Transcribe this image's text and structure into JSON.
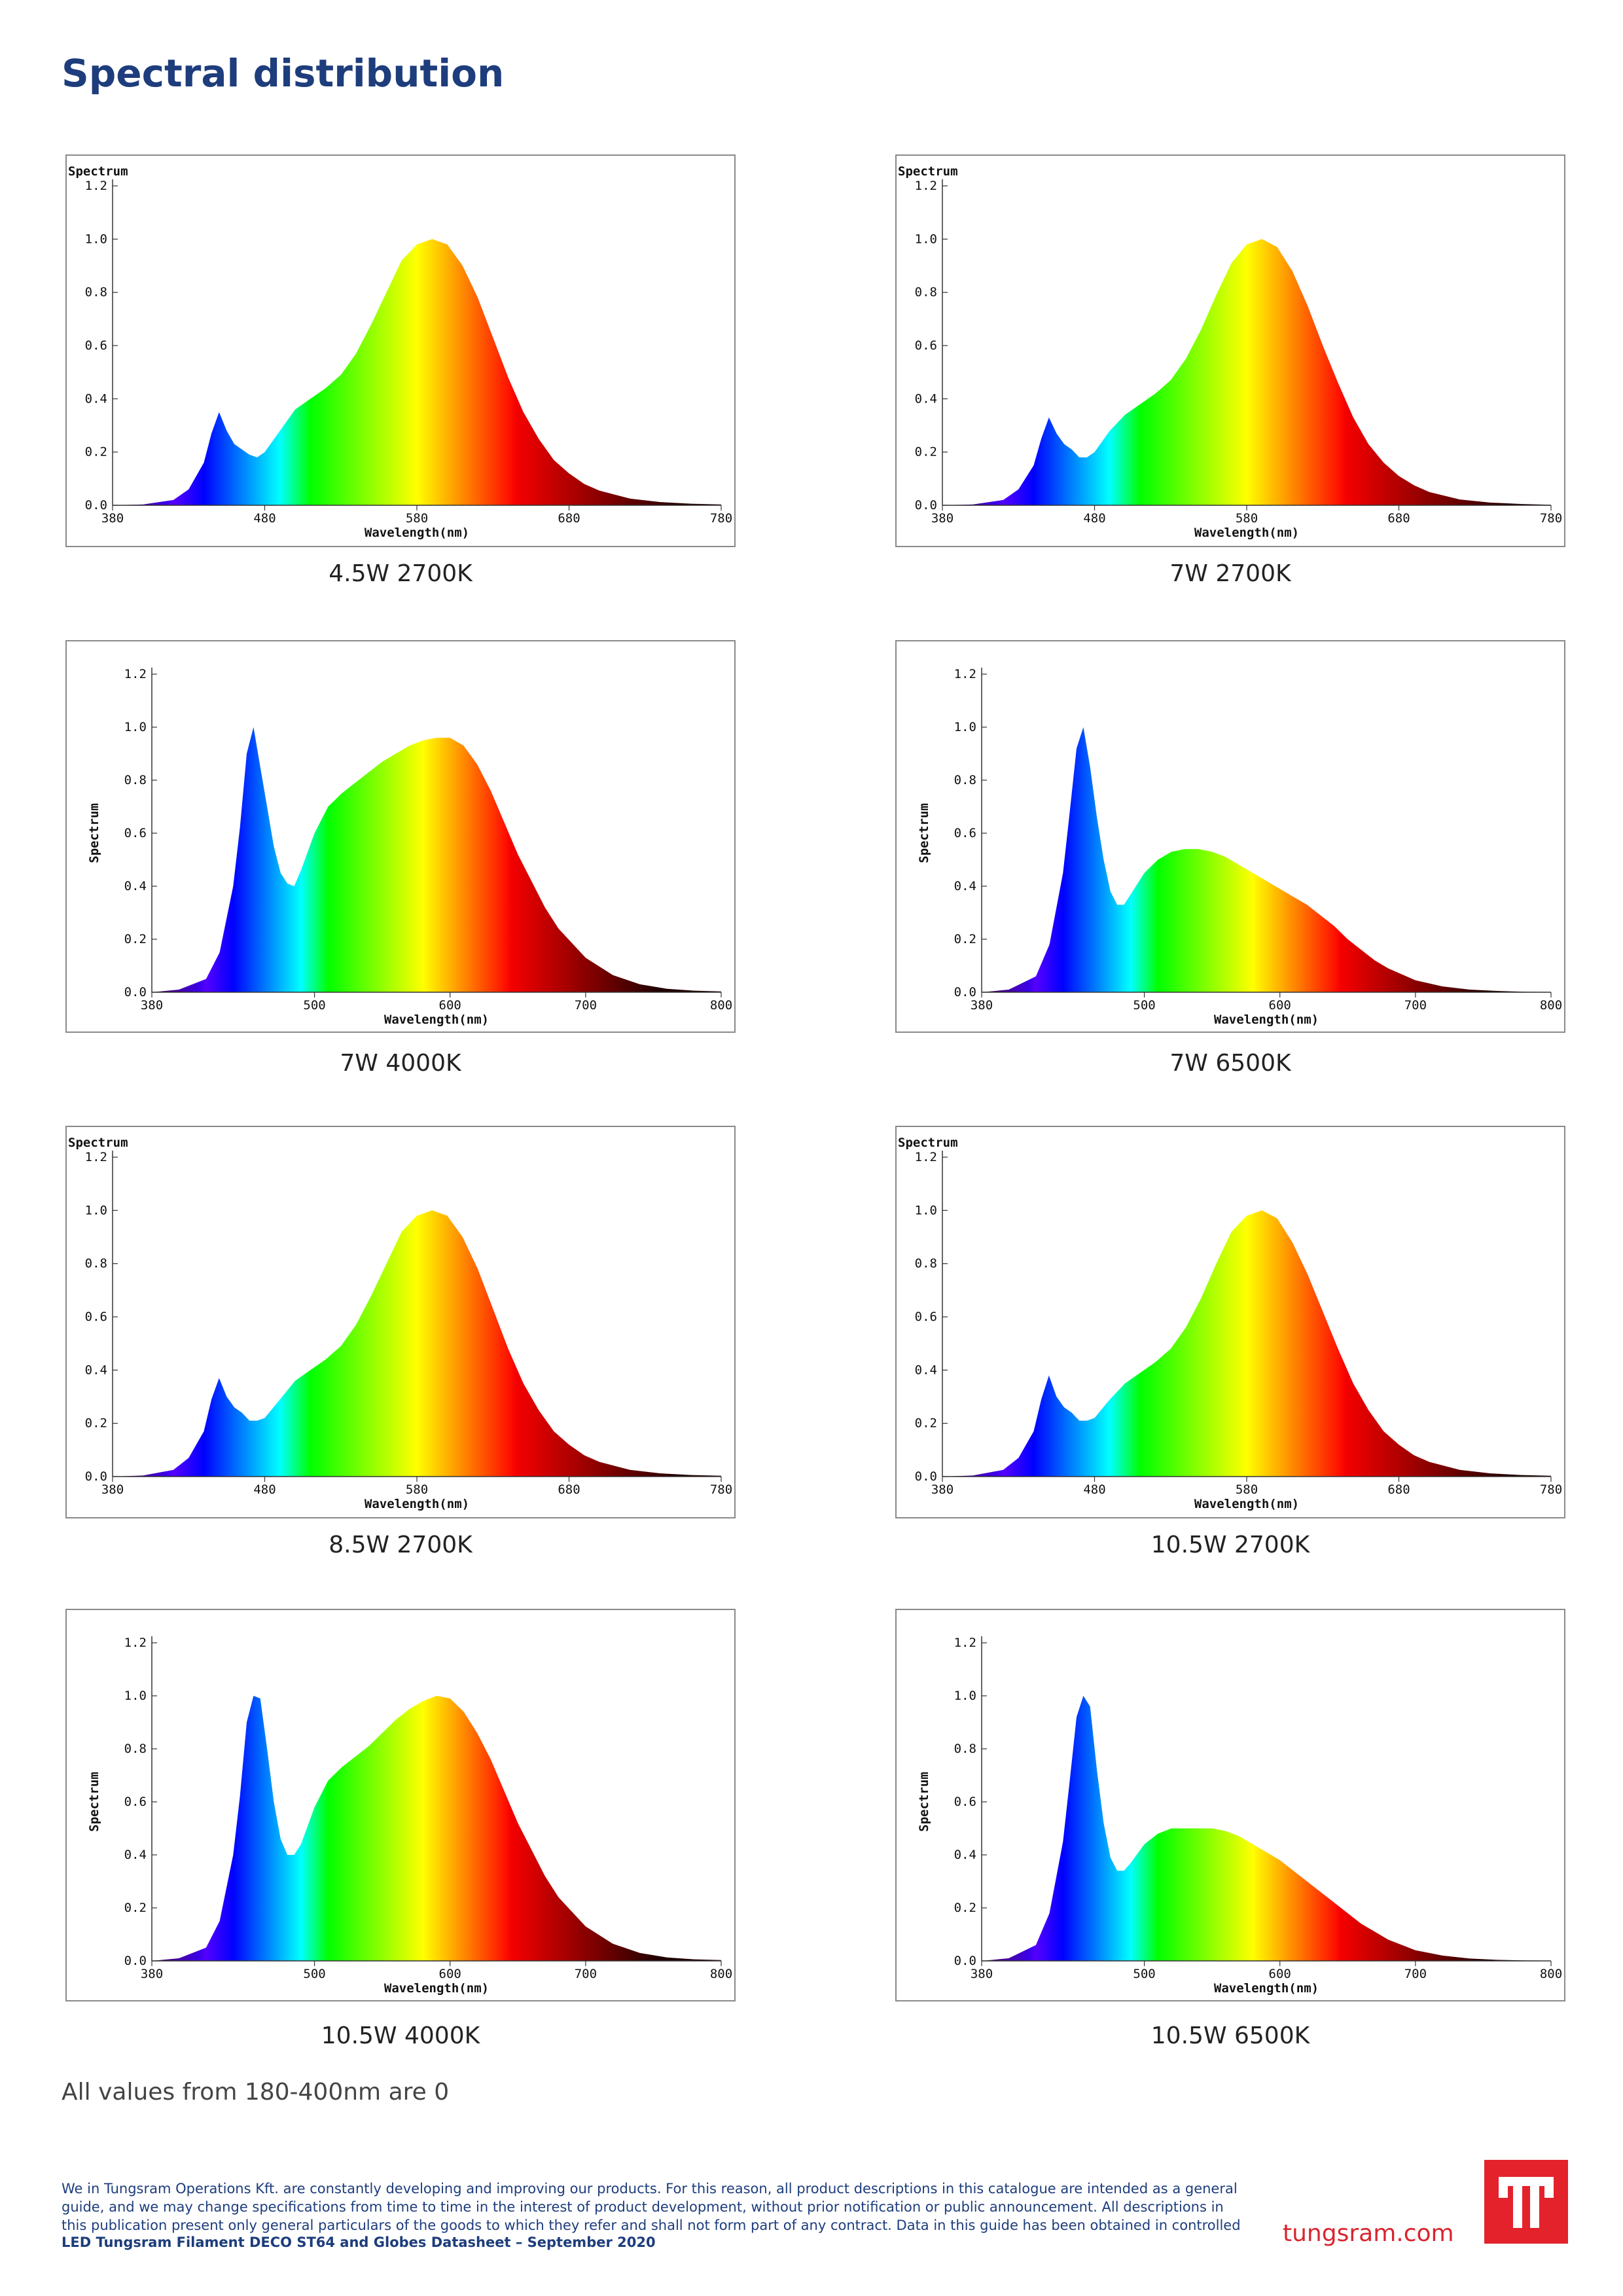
{
  "page": {
    "title": "Spectral distribution",
    "note": "All values from 180-400nm are 0",
    "disclaimer": "We in Tungsram Operations Kft. are constantly developing and improving our products. For this reason, all product descriptions in this catalogue are intended as a general guide, and we may change specifications from time to time in the interest of product development, without prior notification or public announcement. All descriptions in this publication present only general particulars of the goods to which they refer and shall not form part of any contract. Data in this guide has been obtained in controlled",
    "footer_title": "LED Tungsram Filament DECO ST64 and Globes Datasheet – September 2020",
    "website": "tungsram.com",
    "brand_color": "#d9252e",
    "title_color": "#1d3d7c"
  },
  "chart_data": [
    {
      "type": "area",
      "caption": "4.5W 2700K",
      "ylabel": "Spectrum",
      "ylabel_style": "top",
      "xlabel": "Wavelength(nm)",
      "xlim": [
        380,
        780
      ],
      "ylim": [
        0,
        1.2
      ],
      "xticks": [
        380,
        480,
        580,
        680,
        780
      ],
      "yticks": [
        0.0,
        0.2,
        0.4,
        0.6,
        0.8,
        1.0,
        1.2
      ],
      "x": [
        380,
        400,
        420,
        430,
        440,
        445,
        450,
        455,
        460,
        465,
        470,
        475,
        480,
        490,
        500,
        510,
        520,
        530,
        540,
        550,
        560,
        570,
        580,
        590,
        600,
        610,
        620,
        630,
        640,
        650,
        660,
        670,
        680,
        690,
        700,
        720,
        740,
        760,
        780
      ],
      "y": [
        0.0,
        0.003,
        0.02,
        0.06,
        0.16,
        0.27,
        0.35,
        0.28,
        0.23,
        0.21,
        0.19,
        0.18,
        0.2,
        0.28,
        0.36,
        0.4,
        0.44,
        0.49,
        0.57,
        0.68,
        0.8,
        0.92,
        0.98,
        1.0,
        0.98,
        0.9,
        0.78,
        0.63,
        0.48,
        0.35,
        0.25,
        0.17,
        0.12,
        0.08,
        0.055,
        0.025,
        0.012,
        0.006,
        0.003
      ]
    },
    {
      "type": "area",
      "caption": "7W 2700K",
      "ylabel": "Spectrum",
      "ylabel_style": "top",
      "xlabel": "Wavelength(nm)",
      "xlim": [
        380,
        780
      ],
      "ylim": [
        0,
        1.2
      ],
      "xticks": [
        380,
        480,
        580,
        680,
        780
      ],
      "yticks": [
        0.0,
        0.2,
        0.4,
        0.6,
        0.8,
        1.0,
        1.2
      ],
      "x": [
        380,
        400,
        420,
        430,
        440,
        445,
        450,
        455,
        460,
        465,
        470,
        475,
        480,
        490,
        500,
        510,
        520,
        530,
        540,
        550,
        560,
        570,
        580,
        590,
        600,
        610,
        620,
        630,
        640,
        650,
        660,
        670,
        680,
        690,
        700,
        720,
        740,
        760,
        780
      ],
      "y": [
        0.0,
        0.003,
        0.02,
        0.06,
        0.15,
        0.25,
        0.33,
        0.27,
        0.23,
        0.21,
        0.18,
        0.18,
        0.2,
        0.28,
        0.34,
        0.38,
        0.42,
        0.47,
        0.55,
        0.66,
        0.79,
        0.91,
        0.98,
        1.0,
        0.97,
        0.88,
        0.75,
        0.6,
        0.46,
        0.33,
        0.23,
        0.16,
        0.11,
        0.075,
        0.05,
        0.022,
        0.01,
        0.005,
        0.002
      ]
    },
    {
      "type": "area",
      "caption": "7W 4000K",
      "ylabel": "Spectrum",
      "ylabel_style": "side",
      "xlabel": "Wavelength(nm)",
      "xlim": [
        380,
        800
      ],
      "ylim": [
        0,
        1.2
      ],
      "xticks": [
        380,
        500,
        600,
        700,
        800
      ],
      "yticks": [
        0.0,
        0.2,
        0.4,
        0.6,
        0.8,
        1.0,
        1.2
      ],
      "x": [
        380,
        400,
        420,
        430,
        440,
        445,
        450,
        455,
        460,
        465,
        470,
        475,
        480,
        485,
        490,
        500,
        510,
        520,
        530,
        540,
        550,
        560,
        570,
        580,
        590,
        600,
        610,
        620,
        630,
        640,
        650,
        660,
        670,
        680,
        700,
        720,
        740,
        760,
        780,
        800
      ],
      "y": [
        0.0,
        0.01,
        0.05,
        0.15,
        0.4,
        0.62,
        0.9,
        1.0,
        0.85,
        0.7,
        0.55,
        0.45,
        0.41,
        0.4,
        0.46,
        0.6,
        0.7,
        0.75,
        0.79,
        0.83,
        0.87,
        0.9,
        0.93,
        0.95,
        0.96,
        0.96,
        0.93,
        0.86,
        0.76,
        0.64,
        0.52,
        0.42,
        0.32,
        0.24,
        0.13,
        0.065,
        0.03,
        0.013,
        0.006,
        0.003
      ]
    },
    {
      "type": "area",
      "caption": "7W 6500K",
      "ylabel": "Spectrum",
      "ylabel_style": "side",
      "xlabel": "Wavelength(nm)",
      "xlim": [
        380,
        800
      ],
      "ylim": [
        0,
        1.2
      ],
      "xticks": [
        380,
        500,
        600,
        700,
        800
      ],
      "yticks": [
        0.0,
        0.2,
        0.4,
        0.6,
        0.8,
        1.0,
        1.2
      ],
      "x": [
        380,
        400,
        420,
        430,
        440,
        445,
        450,
        455,
        460,
        465,
        470,
        475,
        480,
        485,
        490,
        500,
        510,
        520,
        530,
        540,
        550,
        560,
        570,
        580,
        590,
        600,
        610,
        620,
        630,
        640,
        650,
        660,
        670,
        680,
        700,
        720,
        740,
        760,
        780,
        800
      ],
      "y": [
        0.0,
        0.01,
        0.06,
        0.18,
        0.45,
        0.68,
        0.92,
        1.0,
        0.85,
        0.66,
        0.5,
        0.38,
        0.33,
        0.33,
        0.37,
        0.45,
        0.5,
        0.53,
        0.54,
        0.54,
        0.53,
        0.51,
        0.48,
        0.45,
        0.42,
        0.39,
        0.36,
        0.33,
        0.29,
        0.25,
        0.2,
        0.16,
        0.12,
        0.09,
        0.045,
        0.022,
        0.01,
        0.005,
        0.002,
        0.001
      ]
    },
    {
      "type": "area",
      "caption": "8.5W 2700K",
      "ylabel": "Spectrum",
      "ylabel_style": "top",
      "xlabel": "Wavelength(nm)",
      "xlim": [
        380,
        780
      ],
      "ylim": [
        0,
        1.2
      ],
      "xticks": [
        380,
        480,
        580,
        680,
        780
      ],
      "yticks": [
        0.0,
        0.2,
        0.4,
        0.6,
        0.8,
        1.0,
        1.2
      ],
      "x": [
        380,
        400,
        420,
        430,
        440,
        445,
        450,
        455,
        460,
        465,
        470,
        475,
        480,
        490,
        500,
        510,
        520,
        530,
        540,
        550,
        560,
        570,
        580,
        590,
        600,
        610,
        620,
        630,
        640,
        650,
        660,
        670,
        680,
        690,
        700,
        720,
        740,
        760,
        780
      ],
      "y": [
        0.0,
        0.004,
        0.025,
        0.07,
        0.17,
        0.29,
        0.37,
        0.3,
        0.26,
        0.24,
        0.21,
        0.21,
        0.22,
        0.29,
        0.36,
        0.4,
        0.44,
        0.49,
        0.57,
        0.68,
        0.8,
        0.92,
        0.98,
        1.0,
        0.98,
        0.9,
        0.78,
        0.63,
        0.48,
        0.35,
        0.25,
        0.17,
        0.12,
        0.08,
        0.055,
        0.025,
        0.012,
        0.006,
        0.003
      ]
    },
    {
      "type": "area",
      "caption": "10.5W 2700K",
      "ylabel": "Spectrum",
      "ylabel_style": "top",
      "xlabel": "Wavelength(nm)",
      "xlim": [
        380,
        780
      ],
      "ylim": [
        0,
        1.2
      ],
      "xticks": [
        380,
        480,
        580,
        680,
        780
      ],
      "yticks": [
        0.0,
        0.2,
        0.4,
        0.6,
        0.8,
        1.0,
        1.2
      ],
      "x": [
        380,
        400,
        420,
        430,
        440,
        445,
        450,
        455,
        460,
        465,
        470,
        475,
        480,
        490,
        500,
        510,
        520,
        530,
        540,
        550,
        560,
        570,
        580,
        590,
        600,
        610,
        620,
        630,
        640,
        650,
        660,
        670,
        680,
        690,
        700,
        720,
        740,
        760,
        780
      ],
      "y": [
        0.0,
        0.004,
        0.025,
        0.07,
        0.17,
        0.29,
        0.38,
        0.3,
        0.26,
        0.24,
        0.21,
        0.21,
        0.22,
        0.29,
        0.35,
        0.39,
        0.43,
        0.48,
        0.56,
        0.67,
        0.8,
        0.92,
        0.98,
        1.0,
        0.97,
        0.88,
        0.76,
        0.62,
        0.48,
        0.35,
        0.25,
        0.17,
        0.12,
        0.08,
        0.055,
        0.025,
        0.012,
        0.006,
        0.003
      ]
    },
    {
      "type": "area",
      "caption": "10.5W 4000K",
      "ylabel": "Spectrum",
      "ylabel_style": "side",
      "xlabel": "Wavelength(nm)",
      "xlim": [
        380,
        800
      ],
      "ylim": [
        0,
        1.2
      ],
      "xticks": [
        380,
        500,
        600,
        700,
        800
      ],
      "yticks": [
        0.0,
        0.2,
        0.4,
        0.6,
        0.8,
        1.0,
        1.2
      ],
      "x": [
        380,
        400,
        420,
        430,
        440,
        445,
        450,
        455,
        460,
        465,
        470,
        475,
        480,
        485,
        490,
        500,
        510,
        520,
        530,
        540,
        550,
        560,
        570,
        580,
        590,
        600,
        610,
        620,
        630,
        640,
        650,
        660,
        670,
        680,
        700,
        720,
        740,
        760,
        780,
        800
      ],
      "y": [
        0.0,
        0.01,
        0.05,
        0.15,
        0.4,
        0.62,
        0.9,
        1.0,
        0.99,
        0.8,
        0.6,
        0.46,
        0.4,
        0.4,
        0.44,
        0.58,
        0.68,
        0.73,
        0.77,
        0.81,
        0.86,
        0.91,
        0.95,
        0.98,
        1.0,
        0.99,
        0.94,
        0.86,
        0.76,
        0.64,
        0.52,
        0.42,
        0.32,
        0.24,
        0.13,
        0.065,
        0.03,
        0.013,
        0.006,
        0.003
      ]
    },
    {
      "type": "area",
      "caption": "10.5W 6500K",
      "ylabel": "Spectrum",
      "ylabel_style": "side",
      "xlabel": "Wavelength(nm)",
      "xlim": [
        380,
        800
      ],
      "ylim": [
        0,
        1.2
      ],
      "xticks": [
        380,
        500,
        600,
        700,
        800
      ],
      "yticks": [
        0.0,
        0.2,
        0.4,
        0.6,
        0.8,
        1.0,
        1.2
      ],
      "x": [
        380,
        400,
        420,
        430,
        440,
        445,
        450,
        455,
        460,
        465,
        470,
        475,
        480,
        485,
        490,
        500,
        510,
        520,
        530,
        540,
        550,
        560,
        570,
        580,
        590,
        600,
        610,
        620,
        630,
        640,
        650,
        660,
        670,
        680,
        700,
        720,
        740,
        760,
        780,
        800
      ],
      "y": [
        0.0,
        0.01,
        0.06,
        0.18,
        0.45,
        0.68,
        0.92,
        1.0,
        0.96,
        0.72,
        0.52,
        0.39,
        0.34,
        0.34,
        0.37,
        0.44,
        0.48,
        0.5,
        0.5,
        0.5,
        0.5,
        0.49,
        0.47,
        0.44,
        0.41,
        0.38,
        0.34,
        0.3,
        0.26,
        0.22,
        0.18,
        0.14,
        0.11,
        0.08,
        0.04,
        0.02,
        0.009,
        0.004,
        0.002,
        0.001
      ]
    }
  ]
}
